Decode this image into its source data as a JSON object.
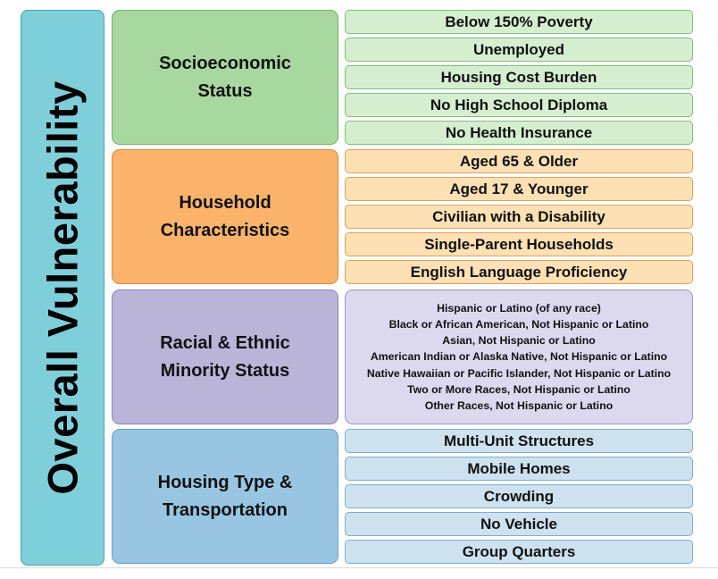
{
  "overall_label": "Overall Vulnerability",
  "themes": {
    "socioeconomic": {
      "label_line1": "Socioeconomic",
      "label_line2": "Status",
      "items": [
        "Below 150% Poverty",
        "Unemployed",
        "Housing Cost Burden",
        "No High School Diploma",
        "No Health Insurance"
      ]
    },
    "household": {
      "label_line1": "Household",
      "label_line2": "Characteristics",
      "items": [
        "Aged 65 & Older",
        "Aged 17 & Younger",
        "Civilian with a Disability",
        "Single-Parent Households",
        "English Language Proficiency"
      ]
    },
    "minority": {
      "label_line1": "Racial & Ethnic",
      "label_line2": "Minority Status",
      "items": [
        "Hispanic or Latino (of any race)",
        "Black or African American, Not Hispanic or Latino",
        "Asian, Not Hispanic or Latino",
        "American Indian or Alaska Native, Not Hispanic or Latino",
        "Native Hawaiian or Pacific Islander, Not Hispanic or Latino",
        "Two or More Races, Not Hispanic or Latino",
        "Other Races, Not Hispanic or Latino"
      ]
    },
    "housing": {
      "label_line1": "Housing Type &",
      "label_line2": "Transportation",
      "items": [
        "Multi-Unit Structures",
        "Mobile Homes",
        "Crowding",
        "No Vehicle",
        "Group Quarters"
      ]
    }
  },
  "colors": {
    "overall": "#7fcfdb",
    "socioeconomic": "#a8d8a0",
    "household": "#fbb36b",
    "minority": "#bab5d8",
    "housing": "#98c6e2"
  }
}
